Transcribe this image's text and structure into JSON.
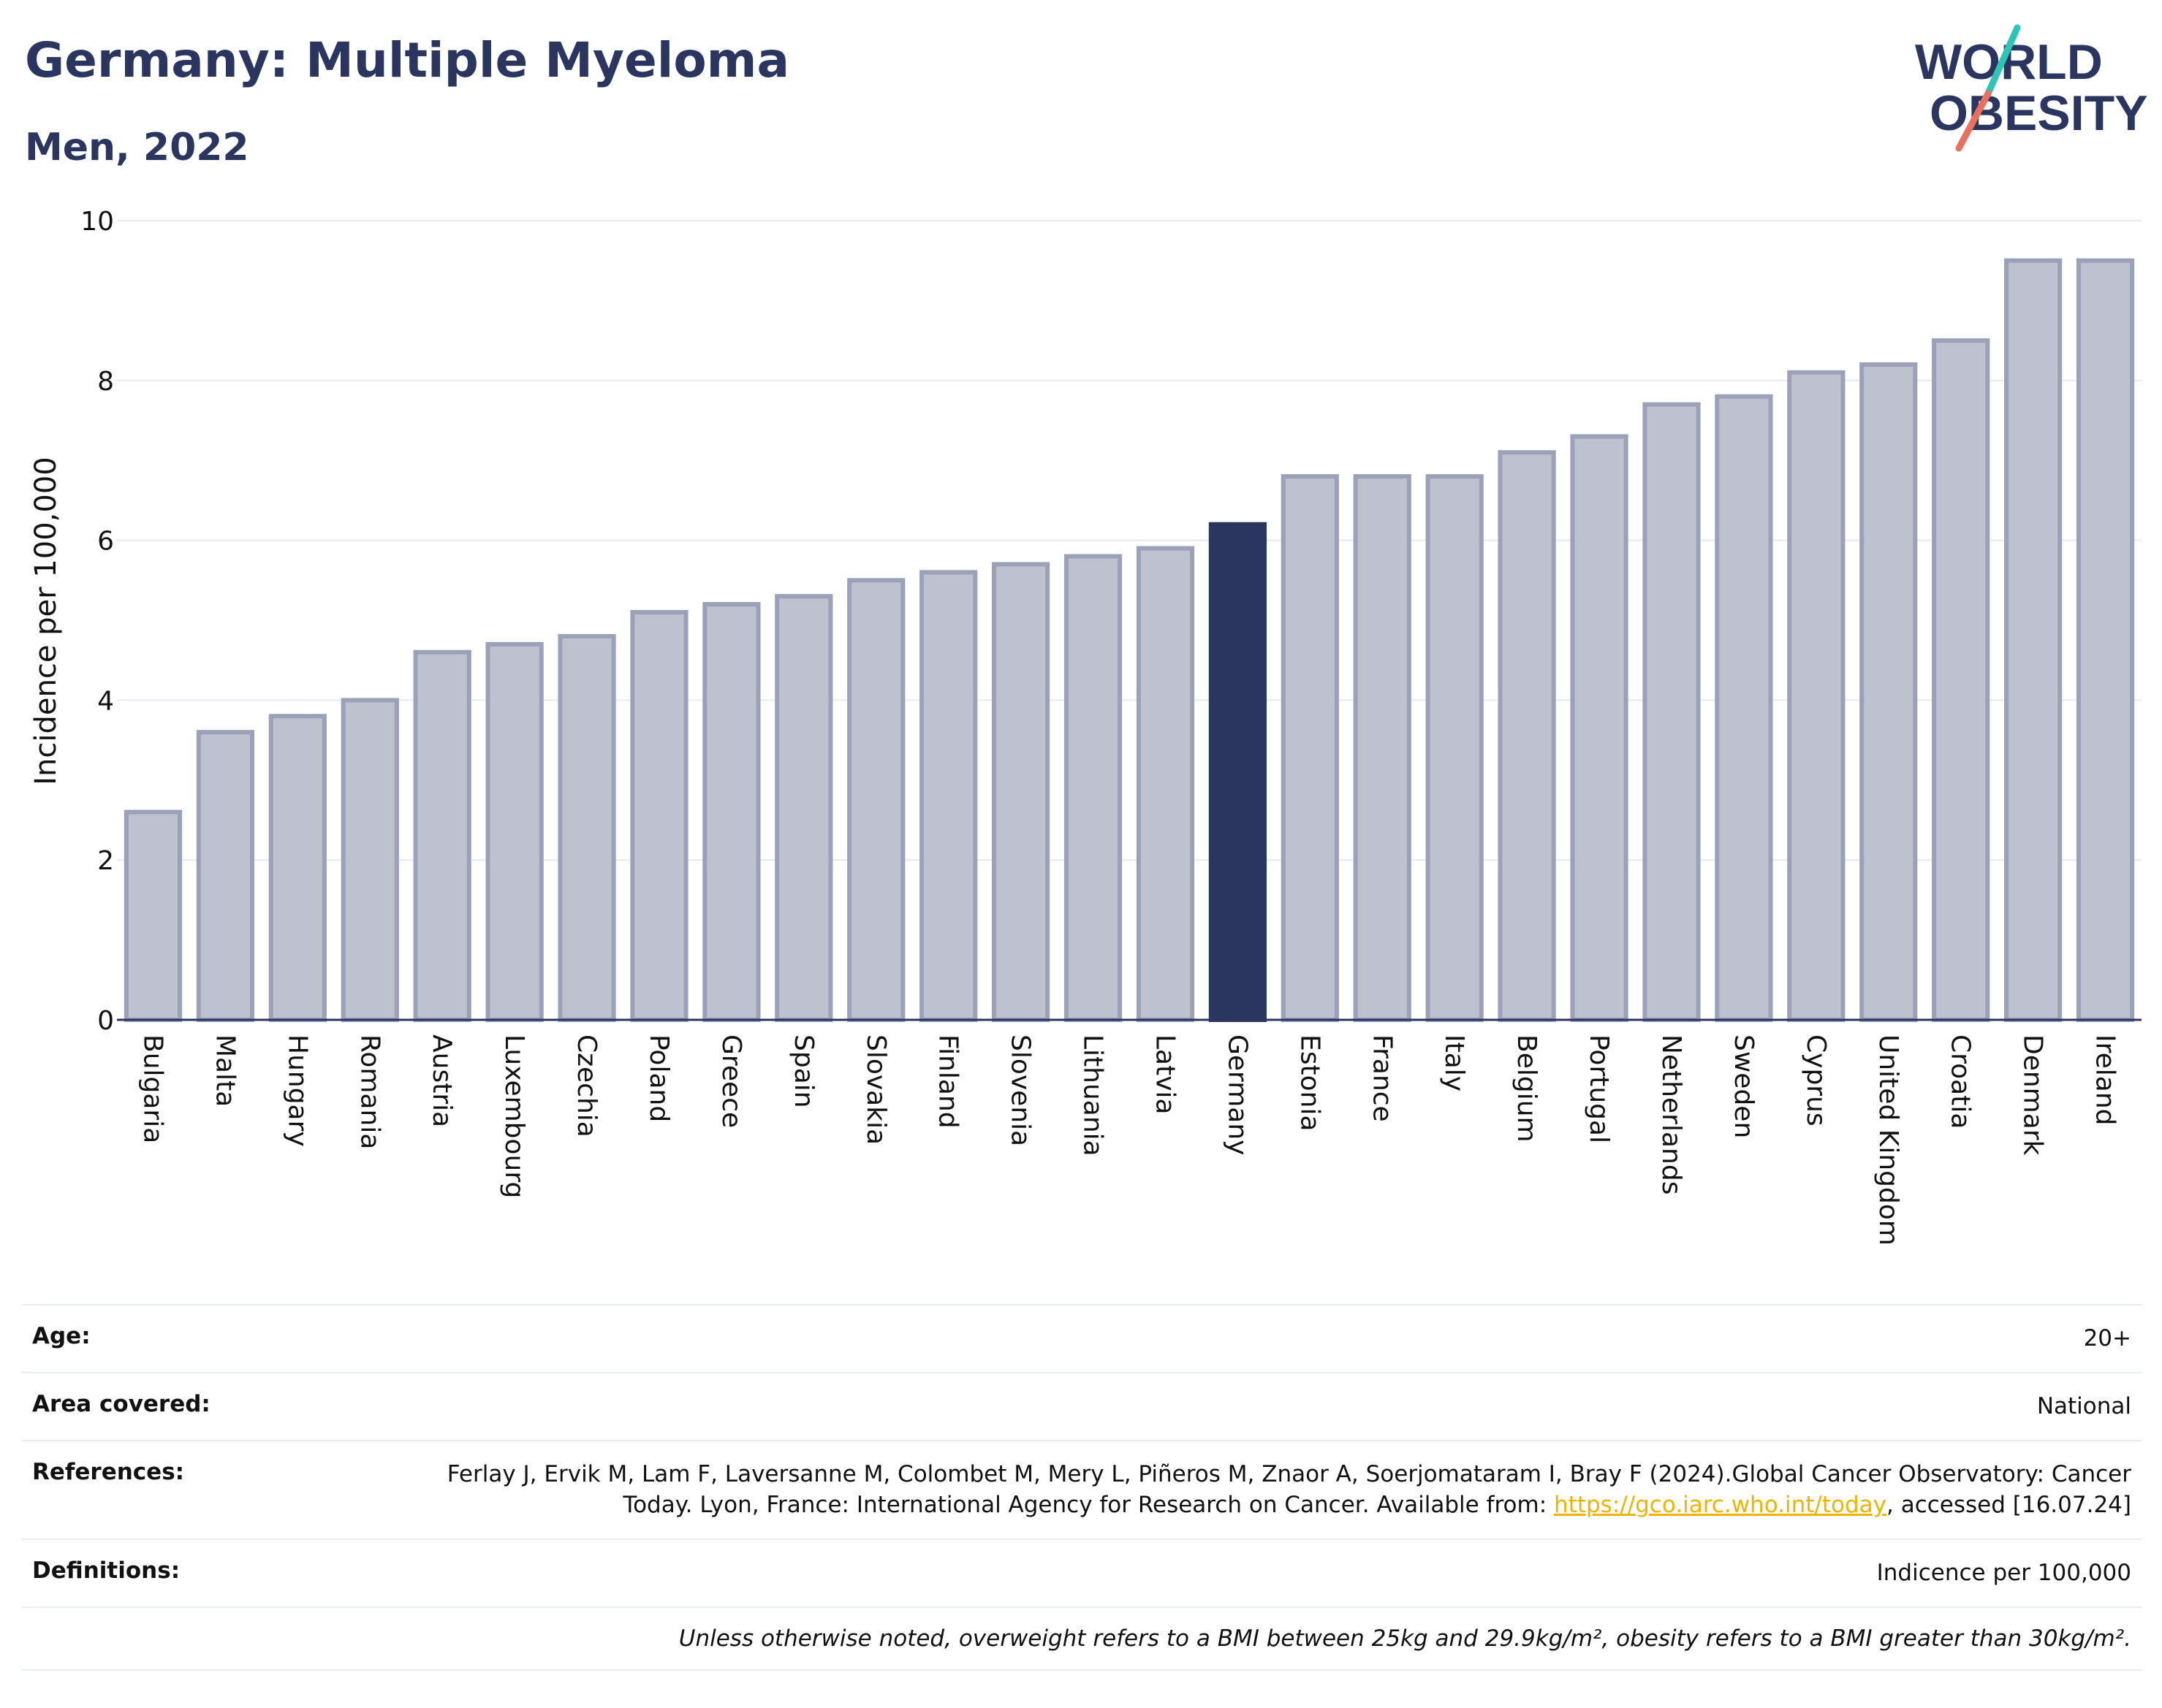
{
  "header": {
    "title": "Germany: Multiple Myeloma",
    "subtitle": "Men, 2022"
  },
  "logo": {
    "line1": "WORLD",
    "line2": "OBESITY",
    "slash_colors": [
      "#2ec4b6",
      "#e8705c"
    ]
  },
  "colors": {
    "bar": "#bec2ce",
    "bar_border": "#9aa1b8",
    "highlight": "#2a3560",
    "text": "#2a3560",
    "link": "#f0b400"
  },
  "chart_data": {
    "type": "bar",
    "ylabel": "Incidence per 100,000",
    "ylim": [
      0,
      10
    ],
    "yticks": [
      0,
      2,
      4,
      6,
      8,
      10
    ],
    "highlight": "Germany",
    "categories": [
      "Bulgaria",
      "Malta",
      "Hungary",
      "Romania",
      "Austria",
      "Luxembourg",
      "Czechia",
      "Poland",
      "Greece",
      "Spain",
      "Slovakia",
      "Finland",
      "Slovenia",
      "Lithuania",
      "Latvia",
      "Germany",
      "Estonia",
      "France",
      "Italy",
      "Belgium",
      "Portugal",
      "Netherlands",
      "Sweden",
      "Cyprus",
      "United Kingdom",
      "Croatia",
      "Denmark",
      "Ireland"
    ],
    "values": [
      2.6,
      3.6,
      3.8,
      4.0,
      4.6,
      4.7,
      4.8,
      5.1,
      5.2,
      5.3,
      5.5,
      5.6,
      5.7,
      5.8,
      5.9,
      6.2,
      6.8,
      6.8,
      6.8,
      7.1,
      7.3,
      7.7,
      7.8,
      8.1,
      8.2,
      8.5,
      9.5,
      9.5
    ]
  },
  "meta": {
    "age_label": "Age:",
    "age_value": "20+",
    "area_label": "Area covered:",
    "area_value": "National",
    "references_label": "References:",
    "references_text_1": "Ferlay J, Ervik M, Lam F, Laversanne M, Colombet M, Mery L, Piñeros M, Znaor A, Soerjomataram I, Bray F (2024).Global Cancer Observatory: Cancer Today. Lyon, France: International Agency for Research on Cancer. Available from: ",
    "references_link": "https://gco.iarc.who.int/today",
    "references_text_2": ", accessed [16.07.24]",
    "definitions_label": "Definitions:",
    "definitions_value": "Indicence per 100,000",
    "note": "Unless otherwise noted, overweight refers to a BMI between 25kg and 29.9kg/m², obesity refers to a BMI greater than 30kg/m²."
  }
}
